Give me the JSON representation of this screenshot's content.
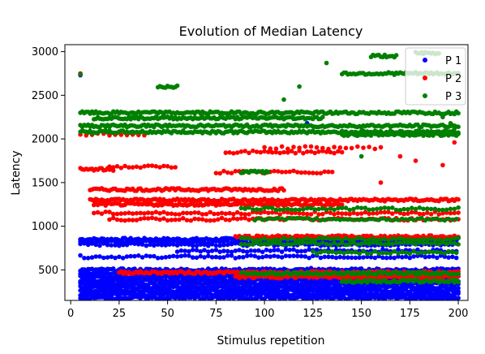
{
  "chart_data": {
    "type": "scatter",
    "title": "Evolution of Median Latency",
    "xlabel": "Stimulus repetition",
    "ylabel": "Latency",
    "xlim": [
      -3,
      205
    ],
    "ylim": [
      150,
      3080
    ],
    "x_ticks": [
      0,
      25,
      50,
      75,
      100,
      125,
      150,
      175,
      200
    ],
    "y_ticks": [
      500,
      1000,
      1500,
      2000,
      2500,
      3000
    ],
    "grid": false,
    "legend_position": "top-right",
    "series": [
      {
        "name": "P 1",
        "color": "#0000ff",
        "bands": [
          {
            "x": [
              5,
              200
            ],
            "y": 850,
            "step": 1
          },
          {
            "x": [
              5,
              200
            ],
            "y": 820,
            "step": 2
          },
          {
            "x": [
              5,
              200
            ],
            "y": 790,
            "step": 2
          },
          {
            "x": [
              55,
              200
            ],
            "y": 720,
            "step": 2
          },
          {
            "x": [
              5,
              200
            ],
            "y": 650,
            "step": 2
          },
          {
            "x": [
              5,
              200
            ],
            "y": 500,
            "step": 1
          },
          {
            "x": [
              5,
              200
            ],
            "y": 460,
            "step": 1
          },
          {
            "x": [
              5,
              200
            ],
            "y": 420,
            "step": 1
          },
          {
            "x": [
              5,
              200
            ],
            "y": 380,
            "step": 1
          },
          {
            "x": [
              5,
              200
            ],
            "y": 340,
            "step": 1
          },
          {
            "x": [
              5,
              200
            ],
            "y": 300,
            "step": 1
          },
          {
            "x": [
              5,
              200
            ],
            "y": 260,
            "step": 1
          },
          {
            "x": [
              5,
              200
            ],
            "y": 220,
            "step": 1
          },
          {
            "x": [
              5,
              200
            ],
            "y": 180,
            "step": 1
          }
        ],
        "points": [
          [
            122,
            2180
          ],
          [
            124,
            520
          ],
          [
            5,
            2730
          ]
        ]
      },
      {
        "name": "P 2",
        "color": "#ff0000",
        "bands": [
          {
            "x": [
              10,
              110
            ],
            "y": 1420,
            "step": 1
          },
          {
            "x": [
              10,
              200
            ],
            "y": 1300,
            "step": 1
          },
          {
            "x": [
              12,
              140
            ],
            "y": 1250,
            "step": 1
          },
          {
            "x": [
              12,
              200
            ],
            "y": 1150,
            "step": 2
          },
          {
            "x": [
              20,
              200
            ],
            "y": 1080,
            "step": 2
          },
          {
            "x": [
              85,
              200
            ],
            "y": 880,
            "step": 1
          },
          {
            "x": [
              25,
              200
            ],
            "y": 470,
            "step": 1
          },
          {
            "x": [
              85,
              200
            ],
            "y": 420,
            "step": 1
          },
          {
            "x": [
              5,
              22
            ],
            "y": 1650,
            "step": 1
          },
          {
            "x": [
              20,
              55
            ],
            "y": 1680,
            "step": 2
          },
          {
            "x": [
              75,
              135
            ],
            "y": 1620,
            "step": 2
          },
          {
            "x": [
              80,
              140
            ],
            "y": 1850,
            "step": 2
          },
          {
            "x": [
              100,
              160
            ],
            "y": 1900,
            "step": 3
          },
          {
            "x": [
              5,
              40
            ],
            "y": 2050,
            "step": 3
          }
        ],
        "points": [
          [
            5,
            2750
          ],
          [
            192,
            1700
          ],
          [
            198,
            1960
          ],
          [
            170,
            1800
          ],
          [
            178,
            1750
          ],
          [
            160,
            1500
          ]
        ]
      },
      {
        "name": "P 3",
        "color": "#008000",
        "bands": [
          {
            "x": [
              5,
              200
            ],
            "y": 2300,
            "step": 1
          },
          {
            "x": [
              12,
              130
            ],
            "y": 2240,
            "step": 1
          },
          {
            "x": [
              5,
              200
            ],
            "y": 2150,
            "step": 1
          },
          {
            "x": [
              5,
              200
            ],
            "y": 2080,
            "step": 1
          },
          {
            "x": [
              140,
              200
            ],
            "y": 2050,
            "step": 1
          },
          {
            "x": [
              140,
              200
            ],
            "y": 2750,
            "step": 1
          },
          {
            "x": [
              155,
              168
            ],
            "y": 2950,
            "step": 1
          },
          {
            "x": [
              178,
              190
            ],
            "y": 2980,
            "step": 1
          },
          {
            "x": [
              45,
              55
            ],
            "y": 2600,
            "step": 1
          },
          {
            "x": [
              88,
              200
            ],
            "y": 1200,
            "step": 2
          },
          {
            "x": [
              95,
              200
            ],
            "y": 1080,
            "step": 2
          },
          {
            "x": [
              88,
              102
            ],
            "y": 1620,
            "step": 1
          },
          {
            "x": [
              88,
              200
            ],
            "y": 850,
            "step": 2
          },
          {
            "x": [
              88,
              200
            ],
            "y": 800,
            "step": 2
          },
          {
            "x": [
              125,
              200
            ],
            "y": 700,
            "step": 2
          },
          {
            "x": [
              88,
              200
            ],
            "y": 460,
            "step": 1
          },
          {
            "x": [
              140,
              200
            ],
            "y": 370,
            "step": 1
          }
        ],
        "points": [
          [
            5,
            2740
          ],
          [
            132,
            2870
          ],
          [
            118,
            2600
          ],
          [
            110,
            2450
          ],
          [
            115,
            2280
          ],
          [
            192,
            2250
          ],
          [
            196,
            2180
          ],
          [
            198,
            2120
          ],
          [
            150,
            1800
          ]
        ]
      }
    ]
  }
}
